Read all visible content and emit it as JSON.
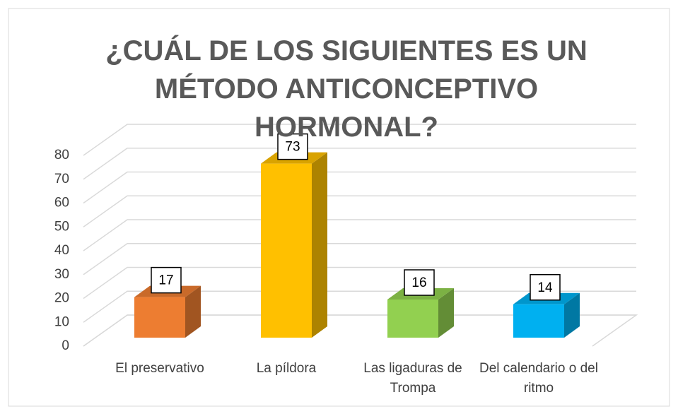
{
  "chart_data": {
    "type": "bar3d",
    "title": "¿CUÁL DE LOS SIGUIENTES ES UN MÉTODO ANTICONCEPTIVO HORMONAL?",
    "categories": [
      "El preservativo",
      "La píldora",
      "Las ligaduras de Trompa",
      "Del calendario o del ritmo"
    ],
    "values": [
      17,
      73,
      16,
      14
    ],
    "colors": [
      "#ED7D31",
      "#FFC000",
      "#92D050",
      "#00B0F0"
    ],
    "ylim": [
      0,
      80
    ],
    "yticks": [
      0,
      10,
      20,
      30,
      40,
      50,
      60,
      70,
      80
    ],
    "grid": true
  }
}
